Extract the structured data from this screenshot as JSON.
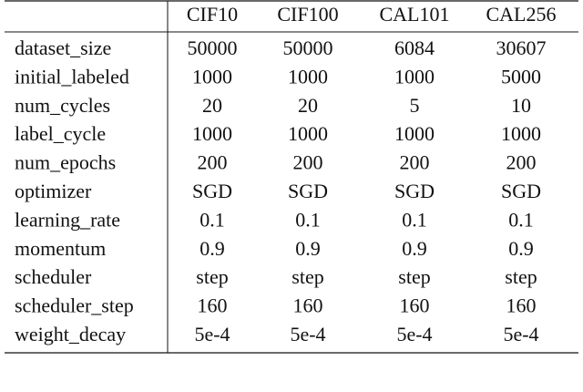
{
  "table": {
    "columns": [
      "CIF10",
      "CIF100",
      "CAL101",
      "CAL256"
    ],
    "rows": [
      [
        "dataset_size",
        "50000",
        "50000",
        "6084",
        "30607"
      ],
      [
        "initial_labeled",
        "1000",
        "1000",
        "1000",
        "5000"
      ],
      [
        "num_cycles",
        "20",
        "20",
        "5",
        "10"
      ],
      [
        "label_cycle",
        "1000",
        "1000",
        "1000",
        "1000"
      ],
      [
        "num_epochs",
        "200",
        "200",
        "200",
        "200"
      ],
      [
        "optimizer",
        "SGD",
        "SGD",
        "SGD",
        "SGD"
      ],
      [
        "learning_rate",
        "0.1",
        "0.1",
        "0.1",
        "0.1"
      ],
      [
        "momentum",
        "0.9",
        "0.9",
        "0.9",
        "0.9"
      ],
      [
        "scheduler",
        "step",
        "step",
        "step",
        "step"
      ],
      [
        "scheduler_step",
        "160",
        "160",
        "160",
        "160"
      ],
      [
        "weight_decay",
        "5e-4",
        "5e-4",
        "5e-4",
        "5e-4"
      ]
    ]
  }
}
